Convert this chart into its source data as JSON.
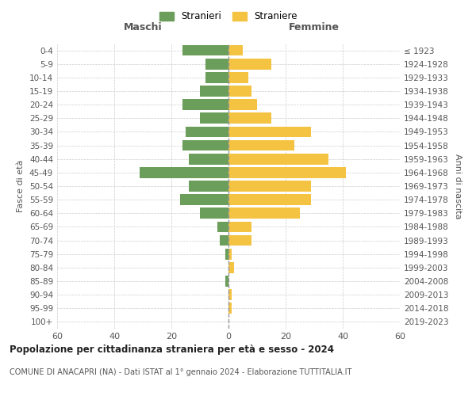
{
  "age_groups": [
    "0-4",
    "5-9",
    "10-14",
    "15-19",
    "20-24",
    "25-29",
    "30-34",
    "35-39",
    "40-44",
    "45-49",
    "50-54",
    "55-59",
    "60-64",
    "65-69",
    "70-74",
    "75-79",
    "80-84",
    "85-89",
    "90-94",
    "95-99",
    "100+"
  ],
  "birth_years": [
    "2019-2023",
    "2014-2018",
    "2009-2013",
    "2004-2008",
    "1999-2003",
    "1994-1998",
    "1989-1993",
    "1984-1988",
    "1979-1983",
    "1974-1978",
    "1969-1973",
    "1964-1968",
    "1959-1963",
    "1954-1958",
    "1949-1953",
    "1944-1948",
    "1939-1943",
    "1934-1938",
    "1929-1933",
    "1924-1928",
    "≤ 1923"
  ],
  "males": [
    16,
    8,
    8,
    10,
    16,
    10,
    15,
    16,
    14,
    31,
    14,
    17,
    10,
    4,
    3,
    1,
    0,
    1,
    0,
    0,
    0
  ],
  "females": [
    5,
    15,
    7,
    8,
    10,
    15,
    29,
    23,
    35,
    41,
    29,
    29,
    25,
    8,
    8,
    1,
    2,
    0,
    1,
    1,
    0
  ],
  "male_color": "#6a9e5a",
  "female_color": "#f5c342",
  "title": "Popolazione per cittadinanza straniera per età e sesso - 2024",
  "subtitle": "COMUNE DI ANACAPRI (NA) - Dati ISTAT al 1° gennaio 2024 - Elaborazione TUTTITALIA.IT",
  "xlabel_left": "Maschi",
  "xlabel_right": "Femmine",
  "ylabel_left": "Fasce di età",
  "ylabel_right": "Anni di nascita",
  "legend_male": "Stranieri",
  "legend_female": "Straniere",
  "xlim": 60,
  "background_color": "#ffffff",
  "grid_color": "#cccccc"
}
